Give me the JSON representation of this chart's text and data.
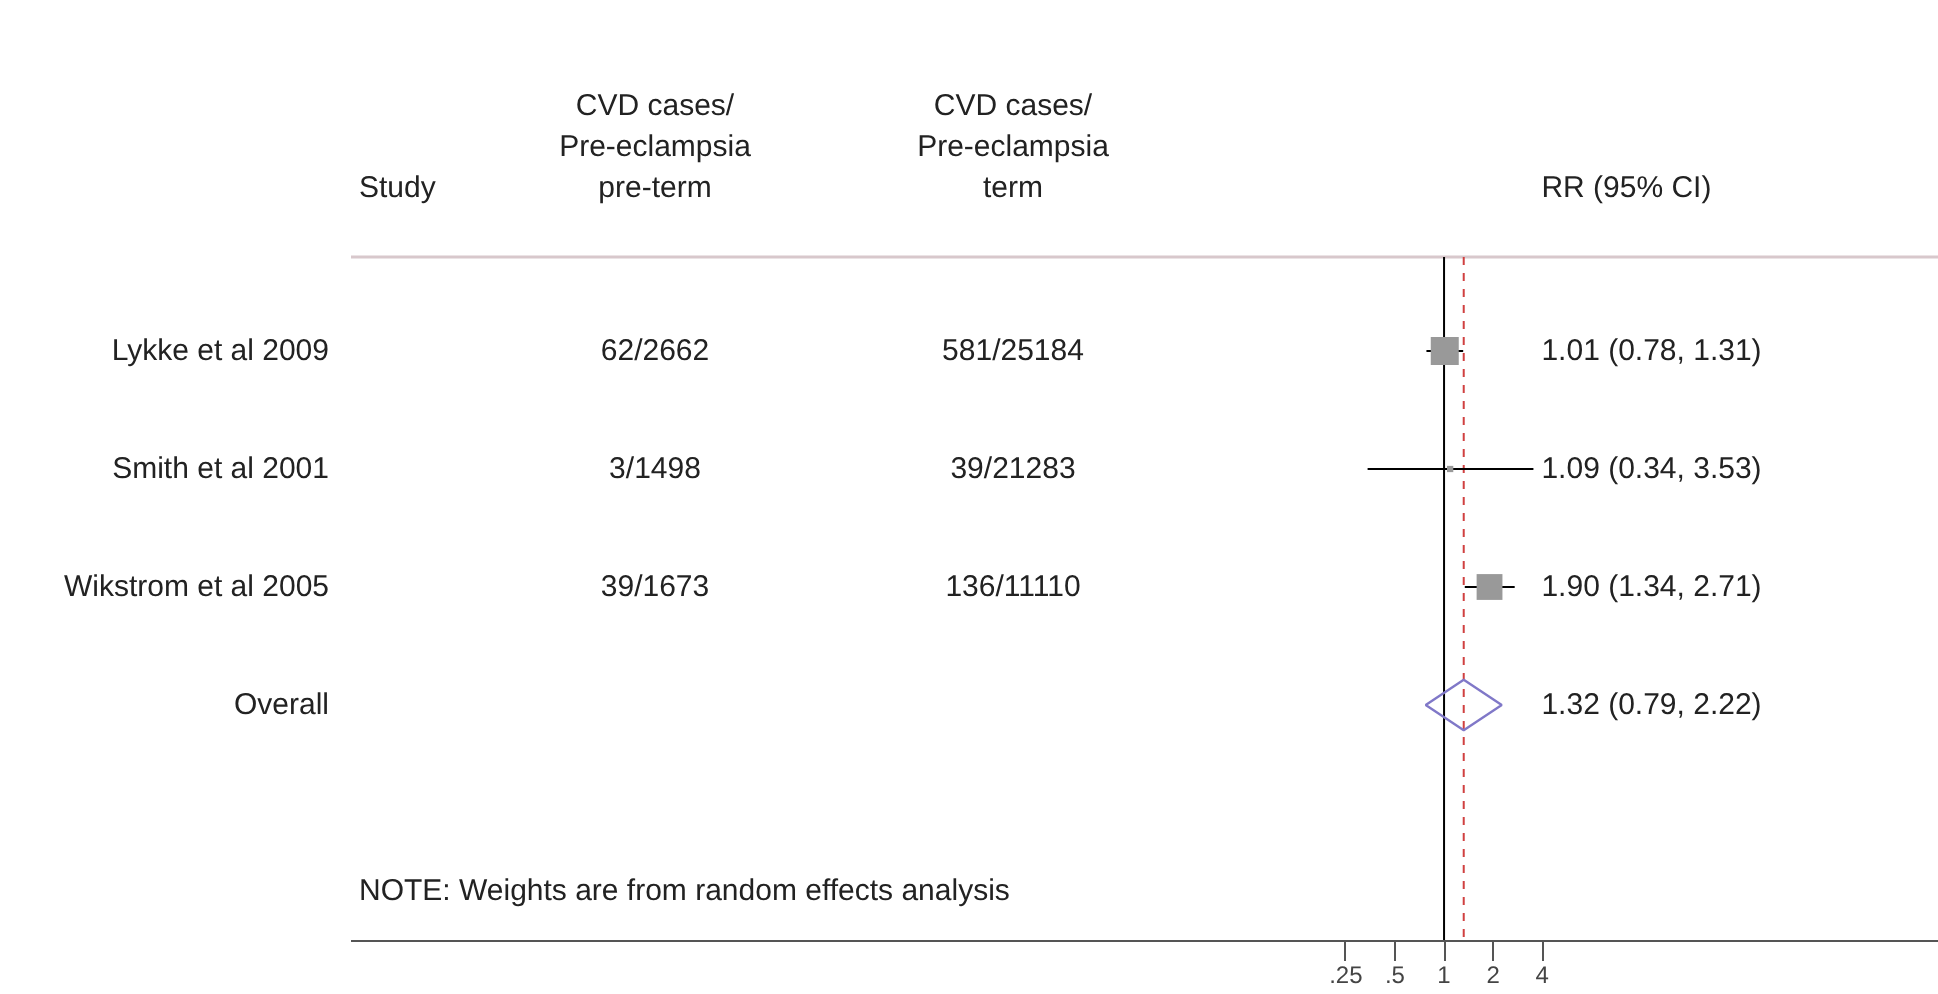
{
  "chart_data": {
    "type": "scatter",
    "orientation": "horizontal",
    "log": "x",
    "grid": false,
    "categories": [
      "Lykke et al 2009",
      "Smith et al 2001",
      "Wikstrom et al 2005",
      "Overall"
    ],
    "xlim": [
      2e-07,
      1080
    ],
    "xticks": [
      {
        "value": 0.25,
        "label": ".25"
      },
      {
        "value": 0.5,
        "label": ".5"
      },
      {
        "value": 1,
        "label": "1"
      },
      {
        "value": 2,
        "label": "2"
      },
      {
        "value": 4,
        "label": "4"
      }
    ],
    "series": [
      {
        "color": "#999999",
        "marker": "square",
        "values": [
          1.01,
          1.09,
          1.9,
          null
        ],
        "errors": [
          [
            0.78,
            1.31
          ],
          [
            0.34,
            3.53
          ],
          [
            1.34,
            2.71
          ],
          null
        ],
        "sizes": [
          1,
          0.05,
          0.85,
          null
        ],
        "value_labels": [
          "1.01 (0.78, 1.31)",
          "1.09 (0.34, 3.53)",
          "1.90 (1.34, 2.71)",
          null
        ]
      },
      {
        "color": "#8078c8",
        "marker": "diamond",
        "values": [
          null,
          null,
          null,
          1.32
        ],
        "value_labels": [
          null,
          null,
          null,
          "1.32 (0.79, 2.22)"
        ]
      }
    ],
    "ref_lines": [
      {
        "axis": "x",
        "value": 1,
        "color": "#000000",
        "line_style": "solid"
      },
      {
        "axis": "x",
        "value": 1.32,
        "color": "#d04040",
        "line_style": "dashed"
      }
    ],
    "annotations": [
      "Study",
      "CVD cases/\nPre-eclampsia\npre-term",
      "CVD cases/\nPre-eclampsia\nterm",
      "RR (95% CI)",
      "62/2662",
      "581/25184",
      "3/1498",
      "39/21283",
      "39/1673",
      "136/11110",
      "NOTE: Weights are from random effects analysis"
    ]
  }
}
